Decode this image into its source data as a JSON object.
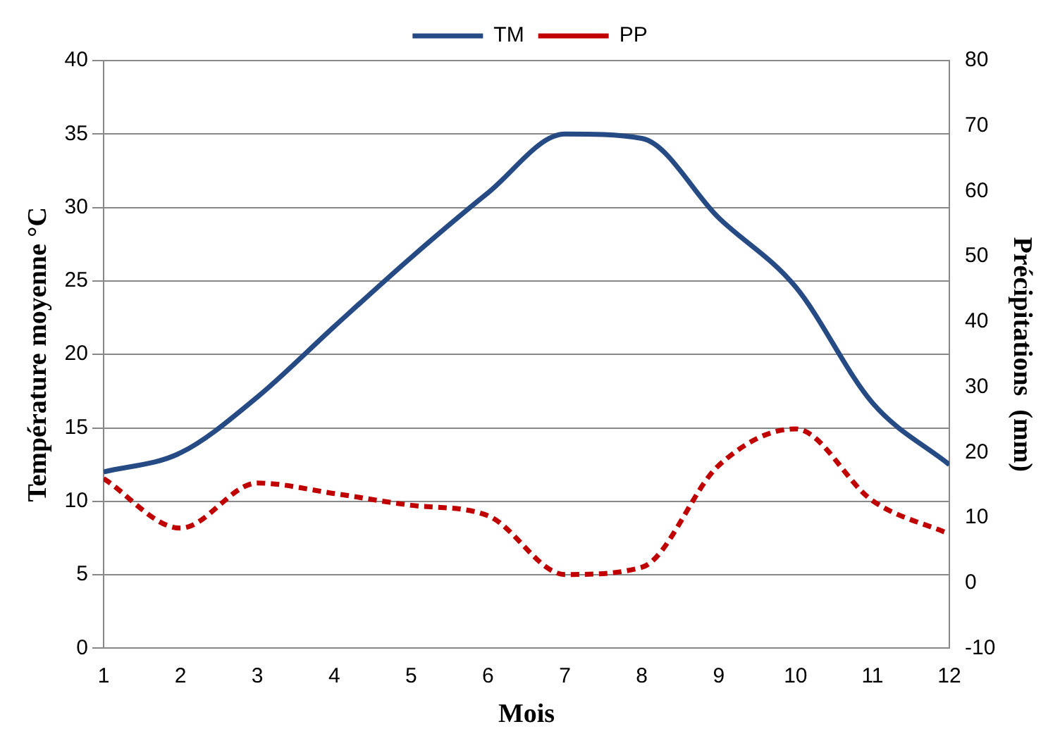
{
  "chart_data": {
    "type": "line",
    "xlabel": "Mois",
    "ylabel": "Température moyenne °C",
    "y2label": "Précipitations  (mm)",
    "x": [
      1,
      2,
      3,
      4,
      5,
      6,
      7,
      8,
      9,
      10,
      11,
      12
    ],
    "xlim": [
      1,
      12
    ],
    "xticks": [
      1,
      2,
      3,
      4,
      5,
      6,
      7,
      8,
      9,
      10,
      11,
      12
    ],
    "ylim": [
      0,
      40
    ],
    "yticks": [
      0,
      5,
      10,
      15,
      20,
      25,
      30,
      35,
      40
    ],
    "y2lim": [
      -10,
      80
    ],
    "y2ticks": [
      -10,
      0,
      10,
      20,
      30,
      40,
      50,
      60,
      70,
      80
    ],
    "grid": "y",
    "legend": "top",
    "marker": "none",
    "series": [
      {
        "name": "TM",
        "color": "#254a84",
        "line_style": "solid",
        "values": [
          12.0,
          13.3,
          17.1,
          21.9,
          26.6,
          31.0,
          35.0,
          34.7,
          29.3,
          24.6,
          16.7,
          12.5
        ]
      },
      {
        "name": "PP",
        "color": "#c00000",
        "line_style": "dashed",
        "axis": "y2",
        "values": [
          16.0,
          8.4,
          15.3,
          13.7,
          11.9,
          10.3,
          1.3,
          2.4,
          18.0,
          23.6,
          12.6,
          7.5
        ]
      }
    ]
  }
}
